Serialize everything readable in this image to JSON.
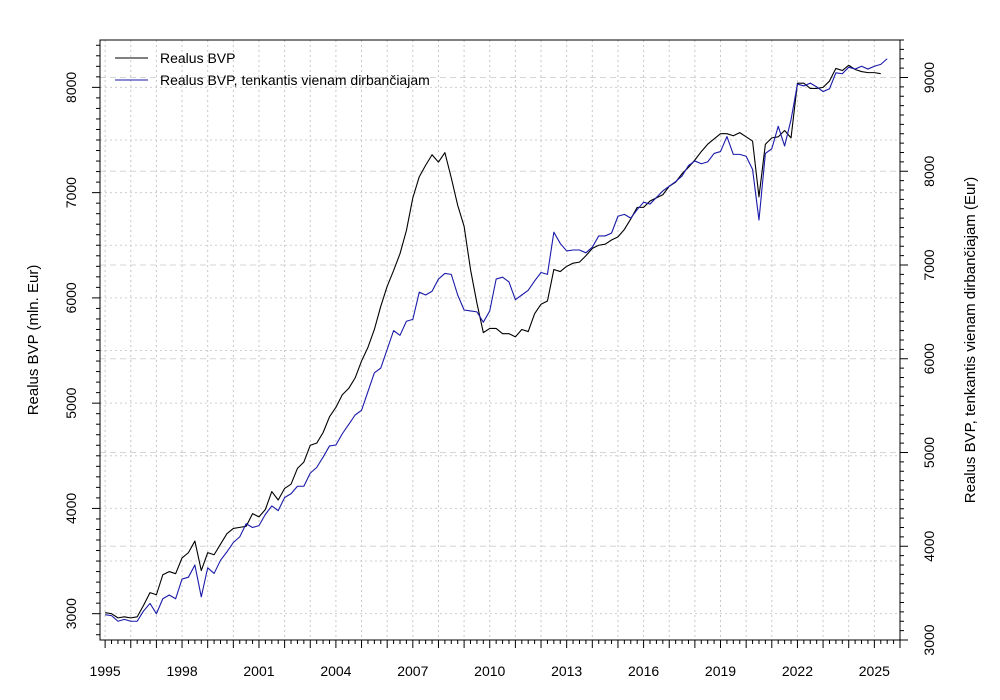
{
  "chart_data": {
    "type": "line",
    "ylabel_left": "Realus BVP (mln. Eur)",
    "ylabel_right": "Realus BVP, tenkantis vienam dirbančiajam (Eur)",
    "xlim": [
      1994.8,
      2026.0
    ],
    "ylim_left": [
      2750,
      8450
    ],
    "ylim_right": [
      3000,
      9400
    ],
    "x_ticks": [
      1995,
      1998,
      2001,
      2004,
      2007,
      2010,
      2013,
      2016,
      2019,
      2022,
      2025
    ],
    "y_ticks_left": [
      3000,
      4000,
      5000,
      6000,
      7000,
      8000
    ],
    "y_ticks_right": [
      3000,
      4000,
      5000,
      6000,
      7000,
      8000,
      9000
    ],
    "grid": true,
    "legend_position": "top-left",
    "series": [
      {
        "name": "Realus BVP",
        "axis": "left",
        "color": "#000000",
        "points": [
          [
            1995.0,
            3010
          ],
          [
            1995.25,
            3000
          ],
          [
            1995.5,
            2960
          ],
          [
            1995.75,
            2970
          ],
          [
            1996.0,
            2960
          ],
          [
            1996.25,
            2970
          ],
          [
            1996.5,
            3080
          ],
          [
            1996.75,
            3200
          ],
          [
            1997.0,
            3180
          ],
          [
            1997.25,
            3370
          ],
          [
            1997.5,
            3400
          ],
          [
            1997.75,
            3380
          ],
          [
            1998.0,
            3530
          ],
          [
            1998.25,
            3580
          ],
          [
            1998.5,
            3690
          ],
          [
            1998.75,
            3410
          ],
          [
            1999.0,
            3580
          ],
          [
            1999.25,
            3560
          ],
          [
            1999.5,
            3660
          ],
          [
            1999.75,
            3760
          ],
          [
            2000.0,
            3810
          ],
          [
            2000.25,
            3820
          ],
          [
            2000.5,
            3830
          ],
          [
            2000.75,
            3950
          ],
          [
            2001.0,
            3920
          ],
          [
            2001.25,
            3990
          ],
          [
            2001.5,
            4160
          ],
          [
            2001.75,
            4080
          ],
          [
            2002.0,
            4190
          ],
          [
            2002.25,
            4230
          ],
          [
            2002.5,
            4380
          ],
          [
            2002.75,
            4440
          ],
          [
            2003.0,
            4600
          ],
          [
            2003.25,
            4620
          ],
          [
            2003.5,
            4720
          ],
          [
            2003.75,
            4870
          ],
          [
            2004.0,
            4960
          ],
          [
            2004.25,
            5080
          ],
          [
            2004.5,
            5140
          ],
          [
            2004.75,
            5240
          ],
          [
            2005.0,
            5400
          ],
          [
            2005.25,
            5530
          ],
          [
            2005.5,
            5700
          ],
          [
            2005.75,
            5920
          ],
          [
            2006.0,
            6110
          ],
          [
            2006.25,
            6260
          ],
          [
            2006.5,
            6420
          ],
          [
            2006.75,
            6640
          ],
          [
            2007.0,
            6950
          ],
          [
            2007.25,
            7150
          ],
          [
            2007.5,
            7260
          ],
          [
            2007.75,
            7360
          ],
          [
            2008.0,
            7290
          ],
          [
            2008.25,
            7380
          ],
          [
            2008.5,
            7140
          ],
          [
            2008.75,
            6880
          ],
          [
            2009.0,
            6680
          ],
          [
            2009.25,
            6270
          ],
          [
            2009.5,
            5950
          ],
          [
            2009.75,
            5670
          ],
          [
            2010.0,
            5710
          ],
          [
            2010.25,
            5710
          ],
          [
            2010.5,
            5660
          ],
          [
            2010.75,
            5660
          ],
          [
            2011.0,
            5630
          ],
          [
            2011.25,
            5700
          ],
          [
            2011.5,
            5680
          ],
          [
            2011.75,
            5850
          ],
          [
            2012.0,
            5940
          ],
          [
            2012.25,
            5970
          ],
          [
            2012.5,
            6270
          ],
          [
            2012.75,
            6250
          ],
          [
            2013.0,
            6300
          ],
          [
            2013.25,
            6330
          ],
          [
            2013.5,
            6340
          ],
          [
            2013.75,
            6400
          ],
          [
            2014.0,
            6470
          ],
          [
            2014.25,
            6500
          ],
          [
            2014.5,
            6510
          ],
          [
            2014.75,
            6550
          ],
          [
            2015.0,
            6580
          ],
          [
            2015.25,
            6650
          ],
          [
            2015.5,
            6750
          ],
          [
            2015.75,
            6860
          ],
          [
            2016.0,
            6860
          ],
          [
            2016.25,
            6920
          ],
          [
            2016.5,
            6950
          ],
          [
            2016.75,
            6980
          ],
          [
            2017.0,
            7060
          ],
          [
            2017.25,
            7100
          ],
          [
            2017.5,
            7180
          ],
          [
            2017.75,
            7240
          ],
          [
            2018.0,
            7310
          ],
          [
            2018.25,
            7390
          ],
          [
            2018.5,
            7460
          ],
          [
            2018.75,
            7510
          ],
          [
            2019.0,
            7560
          ],
          [
            2019.25,
            7560
          ],
          [
            2019.5,
            7540
          ],
          [
            2019.75,
            7570
          ],
          [
            2020.0,
            7530
          ],
          [
            2020.25,
            7490
          ],
          [
            2020.5,
            6960
          ],
          [
            2020.75,
            7460
          ],
          [
            2021.0,
            7520
          ],
          [
            2021.25,
            7530
          ],
          [
            2021.5,
            7590
          ],
          [
            2021.75,
            7520
          ],
          [
            2022.0,
            8040
          ],
          [
            2022.25,
            8040
          ],
          [
            2022.5,
            7990
          ],
          [
            2022.75,
            7990
          ],
          [
            2023.0,
            8000
          ],
          [
            2023.25,
            8060
          ],
          [
            2023.5,
            8180
          ],
          [
            2023.75,
            8160
          ],
          [
            2024.0,
            8210
          ],
          [
            2024.25,
            8170
          ],
          [
            2024.5,
            8150
          ],
          [
            2024.75,
            8140
          ],
          [
            2025.0,
            8140
          ],
          [
            2025.25,
            8130
          ]
        ]
      },
      {
        "name": "Realus BVP, tenkantis vienam dirbančiajam",
        "axis": "right",
        "color": "#1a1aaa",
        "points": [
          [
            1995.0,
            3270
          ],
          [
            1995.25,
            3260
          ],
          [
            1995.5,
            3200
          ],
          [
            1995.75,
            3220
          ],
          [
            1996.0,
            3200
          ],
          [
            1996.25,
            3200
          ],
          [
            1996.5,
            3310
          ],
          [
            1996.75,
            3390
          ],
          [
            1997.0,
            3280
          ],
          [
            1997.25,
            3440
          ],
          [
            1997.5,
            3480
          ],
          [
            1997.75,
            3440
          ],
          [
            1998.0,
            3650
          ],
          [
            1998.25,
            3670
          ],
          [
            1998.5,
            3800
          ],
          [
            1998.75,
            3460
          ],
          [
            1999.0,
            3770
          ],
          [
            1999.25,
            3710
          ],
          [
            1999.5,
            3850
          ],
          [
            1999.75,
            3940
          ],
          [
            2000.0,
            4040
          ],
          [
            2000.25,
            4100
          ],
          [
            2000.5,
            4240
          ],
          [
            2000.75,
            4200
          ],
          [
            2001.0,
            4220
          ],
          [
            2001.25,
            4340
          ],
          [
            2001.5,
            4430
          ],
          [
            2001.75,
            4380
          ],
          [
            2002.0,
            4520
          ],
          [
            2002.25,
            4560
          ],
          [
            2002.5,
            4640
          ],
          [
            2002.75,
            4640
          ],
          [
            2003.0,
            4780
          ],
          [
            2003.25,
            4840
          ],
          [
            2003.5,
            4950
          ],
          [
            2003.75,
            5070
          ],
          [
            2004.0,
            5080
          ],
          [
            2004.25,
            5200
          ],
          [
            2004.5,
            5300
          ],
          [
            2004.75,
            5400
          ],
          [
            2005.0,
            5450
          ],
          [
            2005.25,
            5650
          ],
          [
            2005.5,
            5850
          ],
          [
            2005.75,
            5900
          ],
          [
            2006.0,
            6100
          ],
          [
            2006.25,
            6300
          ],
          [
            2006.5,
            6250
          ],
          [
            2006.75,
            6400
          ],
          [
            2007.0,
            6420
          ],
          [
            2007.25,
            6710
          ],
          [
            2007.5,
            6680
          ],
          [
            2007.75,
            6720
          ],
          [
            2008.0,
            6850
          ],
          [
            2008.25,
            6910
          ],
          [
            2008.5,
            6900
          ],
          [
            2008.75,
            6680
          ],
          [
            2009.0,
            6520
          ],
          [
            2009.25,
            6510
          ],
          [
            2009.5,
            6500
          ],
          [
            2009.75,
            6390
          ],
          [
            2010.0,
            6510
          ],
          [
            2010.25,
            6850
          ],
          [
            2010.5,
            6870
          ],
          [
            2010.75,
            6820
          ],
          [
            2011.0,
            6630
          ],
          [
            2011.25,
            6680
          ],
          [
            2011.5,
            6730
          ],
          [
            2011.75,
            6830
          ],
          [
            2012.0,
            6920
          ],
          [
            2012.25,
            6900
          ],
          [
            2012.5,
            7350
          ],
          [
            2012.75,
            7230
          ],
          [
            2013.0,
            7150
          ],
          [
            2013.25,
            7160
          ],
          [
            2013.5,
            7160
          ],
          [
            2013.75,
            7130
          ],
          [
            2014.0,
            7190
          ],
          [
            2014.25,
            7310
          ],
          [
            2014.5,
            7310
          ],
          [
            2014.75,
            7340
          ],
          [
            2015.0,
            7520
          ],
          [
            2015.25,
            7540
          ],
          [
            2015.5,
            7500
          ],
          [
            2015.75,
            7590
          ],
          [
            2016.0,
            7670
          ],
          [
            2016.25,
            7650
          ],
          [
            2016.5,
            7720
          ],
          [
            2016.75,
            7790
          ],
          [
            2017.0,
            7840
          ],
          [
            2017.25,
            7890
          ],
          [
            2017.5,
            7950
          ],
          [
            2017.75,
            8060
          ],
          [
            2018.0,
            8110
          ],
          [
            2018.25,
            8080
          ],
          [
            2018.5,
            8100
          ],
          [
            2018.75,
            8190
          ],
          [
            2019.0,
            8210
          ],
          [
            2019.25,
            8370
          ],
          [
            2019.5,
            8180
          ],
          [
            2019.75,
            8180
          ],
          [
            2020.0,
            8160
          ],
          [
            2020.25,
            8020
          ],
          [
            2020.5,
            7480
          ],
          [
            2020.75,
            8190
          ],
          [
            2021.0,
            8240
          ],
          [
            2021.25,
            8480
          ],
          [
            2021.5,
            8270
          ],
          [
            2021.75,
            8550
          ],
          [
            2022.0,
            8930
          ],
          [
            2022.25,
            8910
          ],
          [
            2022.5,
            8940
          ],
          [
            2022.75,
            8900
          ],
          [
            2023.0,
            8850
          ],
          [
            2023.25,
            8880
          ],
          [
            2023.5,
            9050
          ],
          [
            2023.75,
            9040
          ],
          [
            2024.0,
            9110
          ],
          [
            2024.25,
            9090
          ],
          [
            2024.5,
            9120
          ],
          [
            2024.75,
            9090
          ],
          [
            2025.0,
            9120
          ],
          [
            2025.25,
            9140
          ],
          [
            2025.5,
            9200
          ]
        ]
      }
    ]
  }
}
